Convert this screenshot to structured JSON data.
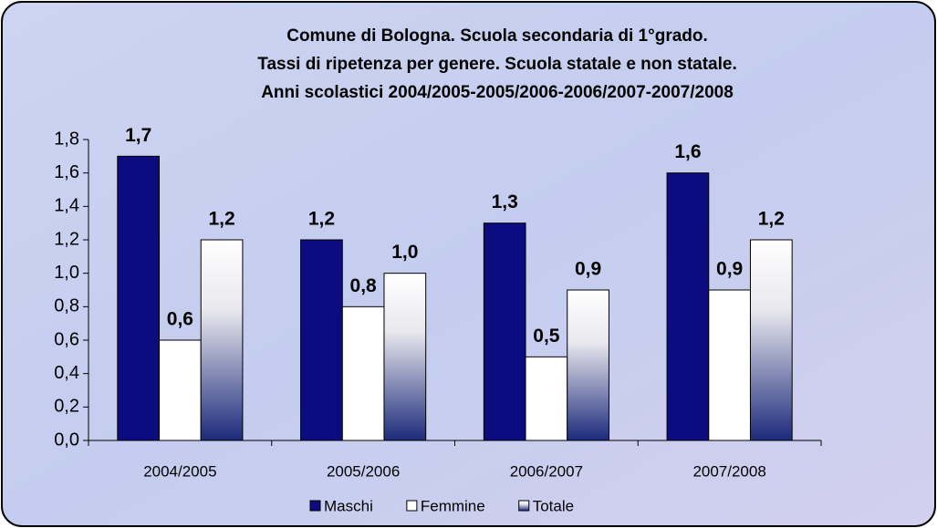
{
  "chart_data": {
    "type": "bar",
    "title": [
      "Comune di Bologna. Scuola secondaria di 1°grado.",
      "Tassi di ripetenza per genere. Scuola statale e non statale.",
      "Anni scolastici 2004/2005-2005/2006-2006/2007-2007/2008"
    ],
    "categories": [
      "2004/2005",
      "2005/2006",
      "2006/2007",
      "2007/2008"
    ],
    "series": [
      {
        "name": "Maschi",
        "color": "#0c0c80",
        "fill": "solid",
        "values": [
          1.7,
          1.2,
          1.3,
          1.6
        ],
        "value_labels": [
          "1,7",
          "1,2",
          "1,3",
          "1,6"
        ]
      },
      {
        "name": "Femmine",
        "color": "#ffffff",
        "fill": "solid",
        "values": [
          0.6,
          0.8,
          0.5,
          0.9
        ],
        "value_labels": [
          "0,6",
          "0,8",
          "0,5",
          "0,9"
        ]
      },
      {
        "name": "Totale",
        "color": "#1c2a7a",
        "fill": "gradient",
        "values": [
          1.2,
          1.0,
          0.9,
          1.2
        ],
        "value_labels": [
          "1,2",
          "1,0",
          "0,9",
          "1,2"
        ]
      }
    ],
    "ylim": [
      0,
      1.8
    ],
    "yticks": [
      {
        "value": 0,
        "label": "0,0"
      },
      {
        "value": 0.2,
        "label": "0,2"
      },
      {
        "value": 0.4,
        "label": "0,4"
      },
      {
        "value": 0.6,
        "label": "0,6"
      },
      {
        "value": 0.8,
        "label": "0,8"
      },
      {
        "value": 1.0,
        "label": "1,0"
      },
      {
        "value": 1.2,
        "label": "1,2"
      },
      {
        "value": 1.4,
        "label": "1,4"
      },
      {
        "value": 1.6,
        "label": "1,6"
      },
      {
        "value": 1.8,
        "label": "1,8"
      }
    ],
    "legend": "bottom"
  }
}
